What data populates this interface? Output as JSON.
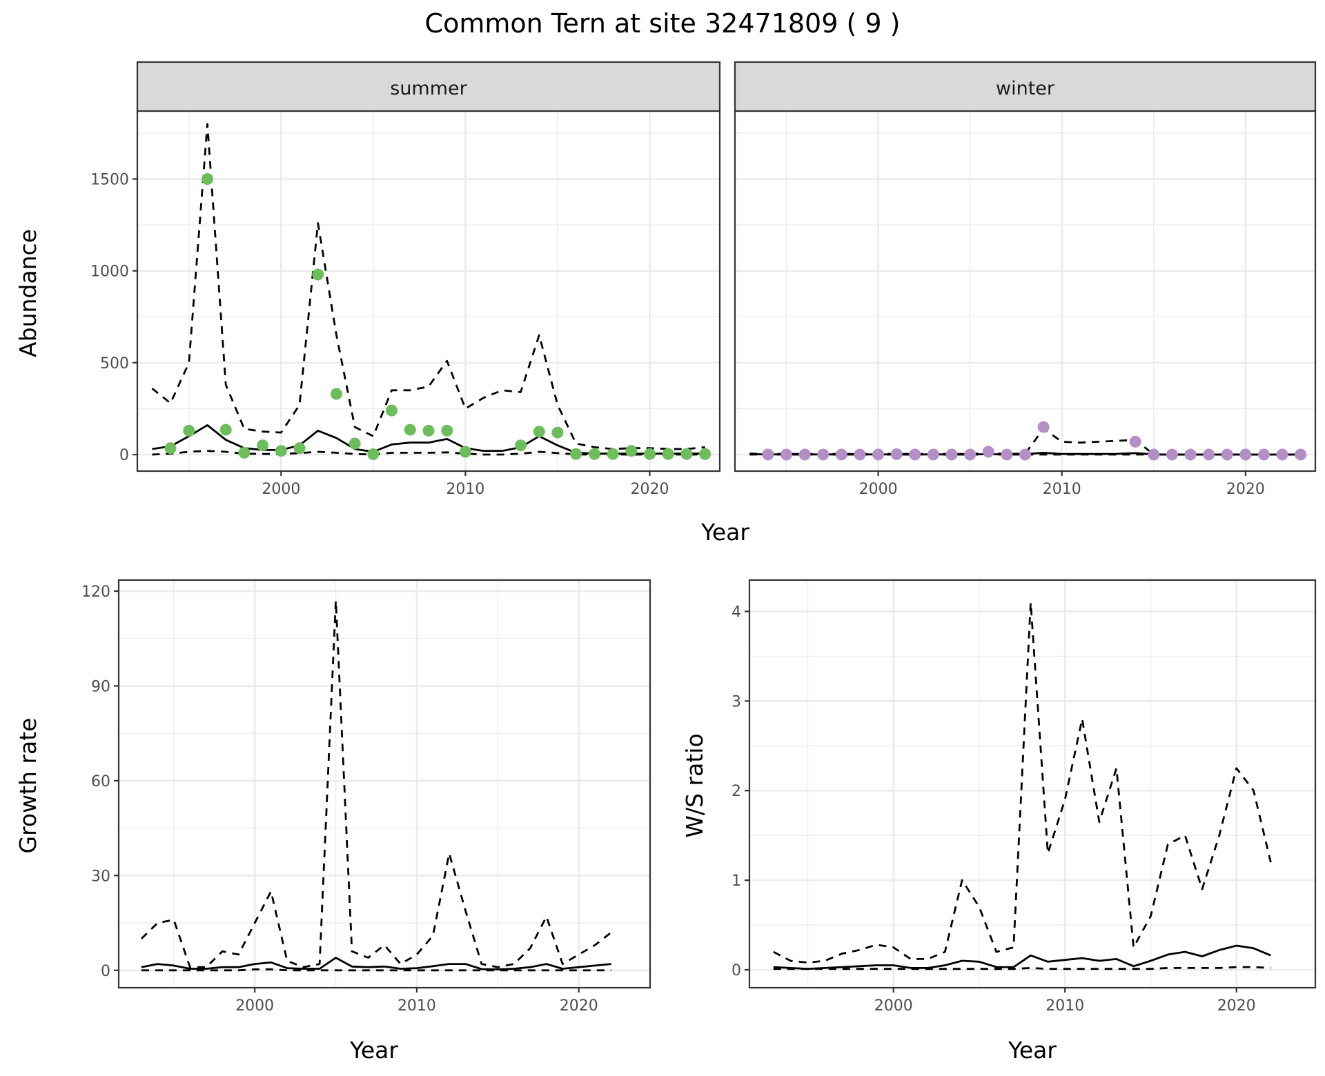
{
  "chart_data": [
    {
      "type": "line",
      "title": "Common Tern at site 32471809 ( 9 )",
      "facet": "summer",
      "xlabel": "Year",
      "ylabel": "Abundance",
      "xticks": [
        2000,
        2010,
        2020
      ],
      "yticks": [
        0,
        500,
        1000,
        1500
      ],
      "xlim": [
        1992.2,
        2023.8
      ],
      "ylim": [
        -90,
        1870
      ],
      "point_color": "#6dbd5b",
      "x": [
        1993,
        1994,
        1995,
        1996,
        1997,
        1998,
        1999,
        2000,
        2001,
        2002,
        2003,
        2004,
        2005,
        2006,
        2007,
        2008,
        2009,
        2010,
        2011,
        2012,
        2013,
        2014,
        2015,
        2016,
        2017,
        2018,
        2019,
        2020,
        2021,
        2022,
        2023
      ],
      "series": [
        {
          "name": "fit",
          "style": "solid",
          "values": [
            30,
            45,
            100,
            160,
            80,
            35,
            25,
            25,
            50,
            130,
            90,
            30,
            15,
            55,
            65,
            65,
            85,
            35,
            20,
            20,
            40,
            100,
            50,
            10,
            5,
            5,
            5,
            5,
            5,
            5,
            5
          ]
        },
        {
          "name": "upper",
          "style": "dashed",
          "values": [
            360,
            280,
            500,
            1800,
            380,
            140,
            125,
            120,
            270,
            1260,
            650,
            150,
            100,
            350,
            350,
            370,
            510,
            250,
            310,
            350,
            340,
            650,
            270,
            60,
            40,
            30,
            35,
            35,
            30,
            30,
            40
          ]
        },
        {
          "name": "lower",
          "style": "dashed",
          "values": [
            0,
            5,
            15,
            20,
            15,
            5,
            3,
            3,
            8,
            15,
            10,
            3,
            0,
            10,
            10,
            10,
            12,
            5,
            0,
            0,
            5,
            15,
            8,
            1,
            0,
            0,
            0,
            0,
            0,
            0,
            0
          ]
        }
      ],
      "points": {
        "x": [
          1994,
          1995,
          1996,
          1997,
          1998,
          1999,
          2000,
          2001,
          2002,
          2003,
          2004,
          2005,
          2006,
          2007,
          2008,
          2009,
          2010,
          2013,
          2014,
          2015,
          2016,
          2017,
          2018,
          2019,
          2020,
          2021,
          2022,
          2023
        ],
        "y": [
          35,
          130,
          1500,
          135,
          10,
          50,
          20,
          35,
          980,
          330,
          60,
          2,
          240,
          135,
          130,
          130,
          15,
          50,
          125,
          120,
          3,
          3,
          3,
          20,
          3,
          3,
          3,
          3
        ]
      }
    },
    {
      "type": "line",
      "facet": "winter",
      "xlabel": "Year",
      "ylabel": "Abundance",
      "xticks": [
        2000,
        2010,
        2020
      ],
      "yticks": [
        0,
        500,
        1000,
        1500
      ],
      "xlim": [
        1992.2,
        2023.8
      ],
      "ylim": [
        -90,
        1870
      ],
      "point_color": "#b48fc7",
      "x": [
        1993,
        1994,
        1995,
        1996,
        1997,
        1998,
        1999,
        2000,
        2001,
        2002,
        2003,
        2004,
        2005,
        2006,
        2007,
        2008,
        2009,
        2010,
        2011,
        2012,
        2013,
        2014,
        2015,
        2016,
        2017,
        2018,
        2019,
        2020,
        2021,
        2022,
        2023
      ],
      "series": [
        {
          "name": "fit",
          "style": "solid",
          "values": [
            2,
            1,
            1,
            1,
            1,
            1,
            1,
            1,
            1,
            1,
            1,
            1,
            1,
            2,
            1,
            2,
            10,
            3,
            3,
            3,
            4,
            8,
            1,
            0,
            0,
            0,
            0,
            0,
            0,
            0,
            0
          ]
        },
        {
          "name": "upper",
          "style": "dashed",
          "values": [
            5,
            3,
            3,
            3,
            3,
            3,
            3,
            3,
            3,
            3,
            3,
            3,
            3,
            8,
            3,
            5,
            140,
            70,
            65,
            70,
            75,
            80,
            0,
            0,
            0,
            0,
            0,
            0,
            0,
            0,
            0
          ]
        },
        {
          "name": "lower",
          "style": "dashed",
          "values": [
            0,
            0,
            0,
            0,
            0,
            0,
            0,
            0,
            0,
            0,
            0,
            0,
            0,
            0,
            0,
            0,
            0,
            0,
            0,
            0,
            0,
            0,
            0,
            0,
            0,
            0,
            0,
            0,
            0,
            0,
            0
          ]
        }
      ],
      "points": {
        "x": [
          1994,
          1995,
          1996,
          1997,
          1998,
          1999,
          2000,
          2001,
          2002,
          2003,
          2004,
          2005,
          2006,
          2007,
          2008,
          2009,
          2014,
          2015,
          2016,
          2017,
          2018,
          2019,
          2020,
          2021,
          2022,
          2023
        ],
        "y": [
          0,
          0,
          0,
          0,
          0,
          0,
          0,
          2,
          0,
          0,
          0,
          0,
          15,
          0,
          0,
          150,
          70,
          0,
          0,
          0,
          0,
          0,
          0,
          0,
          0,
          0
        ]
      }
    },
    {
      "type": "line",
      "xlabel": "Year",
      "ylabel": "Growth rate",
      "xticks": [
        2000,
        2010,
        2020
      ],
      "yticks": [
        0,
        30,
        60,
        90,
        120
      ],
      "xlim": [
        1991.6,
        2024.4
      ],
      "ylim": [
        -5.5,
        123.5
      ],
      "x": [
        1993,
        1994,
        1995,
        1996,
        1997,
        1998,
        1999,
        2000,
        2001,
        2002,
        2003,
        2004,
        2005,
        2006,
        2007,
        2008,
        2009,
        2010,
        2011,
        2012,
        2013,
        2014,
        2015,
        2016,
        2017,
        2018,
        2019,
        2020,
        2021,
        2022
      ],
      "series": [
        {
          "name": "fit",
          "style": "solid",
          "values": [
            1,
            2,
            1.5,
            0.5,
            0.5,
            1,
            1,
            2,
            2.5,
            0.7,
            0.5,
            0.5,
            4,
            1.2,
            1,
            1.2,
            0.5,
            0.7,
            1.3,
            2,
            2,
            0.4,
            0.3,
            0.5,
            1,
            2,
            0.5,
            1,
            1.5,
            2
          ]
        },
        {
          "name": "upper",
          "style": "dashed",
          "values": [
            10,
            15,
            16,
            1,
            1,
            6,
            5,
            15,
            25,
            3,
            1,
            2,
            117,
            6,
            4,
            8,
            2,
            5,
            11,
            37,
            19,
            2,
            1,
            2,
            7,
            17,
            2,
            5,
            8,
            12
          ]
        },
        {
          "name": "lower",
          "style": "dashed",
          "values": [
            0,
            0,
            0,
            0,
            0,
            0,
            0,
            0.3,
            0.3,
            0,
            0,
            0,
            0,
            0,
            0,
            0,
            0,
            0,
            0,
            0,
            0,
            0,
            0,
            0,
            0,
            0,
            0,
            0,
            0,
            0
          ]
        }
      ]
    },
    {
      "type": "line",
      "xlabel": "Year",
      "ylabel": "W/S ratio",
      "xticks": [
        2000,
        2010,
        2020
      ],
      "yticks": [
        0,
        1,
        2,
        3,
        4
      ],
      "xlim": [
        1991.6,
        2024.6
      ],
      "ylim": [
        -0.2,
        4.35
      ],
      "x": [
        1993,
        1994,
        1995,
        1996,
        1997,
        1998,
        1999,
        2000,
        2001,
        2002,
        2003,
        2004,
        2005,
        2006,
        2007,
        2008,
        2009,
        2010,
        2011,
        2012,
        2013,
        2014,
        2015,
        2016,
        2017,
        2018,
        2019,
        2020,
        2021,
        2022
      ],
      "series": [
        {
          "name": "fit",
          "style": "solid",
          "values": [
            0.03,
            0.02,
            0.01,
            0.02,
            0.03,
            0.04,
            0.05,
            0.05,
            0.02,
            0.02,
            0.05,
            0.1,
            0.09,
            0.03,
            0.03,
            0.16,
            0.09,
            0.11,
            0.13,
            0.1,
            0.12,
            0.04,
            0.1,
            0.17,
            0.2,
            0.15,
            0.22,
            0.27,
            0.24,
            0.16
          ]
        },
        {
          "name": "upper",
          "style": "dashed",
          "values": [
            0.2,
            0.1,
            0.08,
            0.1,
            0.18,
            0.22,
            0.28,
            0.25,
            0.12,
            0.12,
            0.2,
            1.0,
            0.7,
            0.2,
            0.25,
            4.1,
            1.3,
            1.9,
            2.8,
            1.65,
            2.25,
            0.25,
            0.6,
            1.4,
            1.5,
            0.9,
            1.5,
            2.25,
            2.0,
            1.2
          ]
        },
        {
          "name": "lower",
          "style": "dashed",
          "values": [
            0.01,
            0.01,
            0.01,
            0.01,
            0.01,
            0.01,
            0.01,
            0.01,
            0.01,
            0.01,
            0.01,
            0.01,
            0.01,
            0.01,
            0.01,
            0.02,
            0.01,
            0.01,
            0.01,
            0.01,
            0.01,
            0.01,
            0.01,
            0.02,
            0.02,
            0.02,
            0.02,
            0.03,
            0.03,
            0.02
          ]
        }
      ]
    }
  ]
}
